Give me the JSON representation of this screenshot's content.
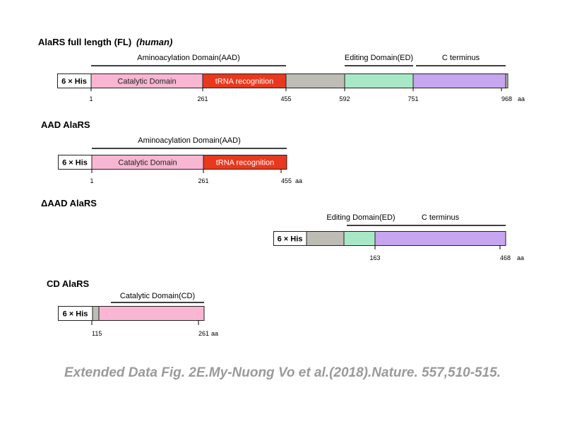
{
  "colors": {
    "catalytic": "#f8b6d2",
    "trna": "#e8381e",
    "linker": "#bdbdb5",
    "editing": "#a9e8c6",
    "cterm": "#c6a6ee",
    "outline": "#222222",
    "caption": "#9a9a9a"
  },
  "constructs": [
    {
      "title": "AlaRS full length (FL)",
      "title_note": "(human)",
      "tag": "6 × His",
      "domains": [
        {
          "label": "Catalytic Domain",
          "type": "catalytic"
        },
        {
          "label": "tRNA recognition",
          "type": "trna"
        },
        {
          "label": "",
          "type": "linker"
        },
        {
          "label": "",
          "type": "editing"
        },
        {
          "label": "",
          "type": "cterm"
        }
      ],
      "brackets": [
        "Aminoacylation Domain(AAD)",
        "Editing Domain(ED)",
        "C terminus"
      ],
      "ticks": [
        "1",
        "261",
        "455",
        "592",
        "751",
        "968"
      ],
      "unit": "aa"
    },
    {
      "title": "AAD AlaRS",
      "title_note": "",
      "tag": "6 × His",
      "domains": [
        {
          "label": "Catalytic Domain",
          "type": "catalytic"
        },
        {
          "label": "tRNA recognition",
          "type": "trna"
        }
      ],
      "brackets": [
        "Aminoacylation Domain(AAD)"
      ],
      "ticks": [
        "1",
        "261",
        "455"
      ],
      "unit": "aa"
    },
    {
      "title": "ΔAAD AlaRS",
      "title_note": "",
      "tag": "6 × His",
      "domains": [
        {
          "label": "",
          "type": "linker"
        },
        {
          "label": "",
          "type": "editing"
        },
        {
          "label": "",
          "type": "cterm"
        }
      ],
      "brackets": [
        "Editing Domain(ED)",
        "C terminus"
      ],
      "ticks": [
        "163",
        "468"
      ],
      "unit": "aa"
    },
    {
      "title": "CD AlaRS",
      "title_note": "",
      "tag": "6 × His",
      "domains": [
        {
          "label": "",
          "type": "linker"
        },
        {
          "label": "",
          "type": "catalytic"
        }
      ],
      "brackets": [
        "Catalytic Domain(CD)"
      ],
      "ticks": [
        "115",
        "261"
      ],
      "unit": "aa"
    }
  ],
  "caption": "Extended Data Fig. 2E.My-Nuong Vo et al.(2018).Nature. 557,510-515."
}
